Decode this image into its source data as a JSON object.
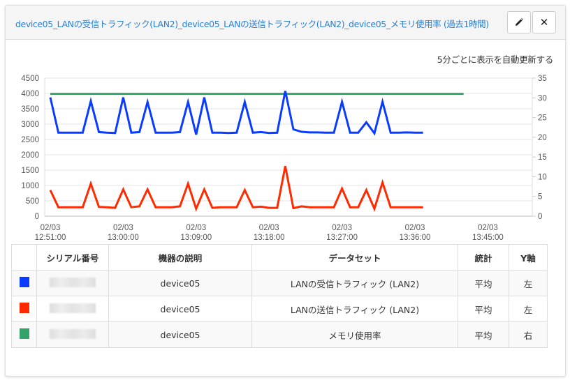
{
  "header": {
    "title": "device05_LANの受信トラフィック(LAN2)_device05_LANの送信トラフィック(LAN2)_device05_メモリ使用率 (過去1時間)",
    "edit_icon": "pencil-icon",
    "close_icon": "close-icon",
    "close_label": "✕"
  },
  "refresh_text": "5分ごとに表示を自動更新する",
  "chart_data": {
    "type": "line",
    "x_start": "02/03 12:51:00",
    "x_interval": "1 minute",
    "x_ticks": [
      [
        "02/03",
        "12:51:00"
      ],
      [
        "02/03",
        "13:00:00"
      ],
      [
        "02/03",
        "13:09:00"
      ],
      [
        "02/03",
        "13:18:00"
      ],
      [
        "02/03",
        "13:27:00"
      ],
      [
        "02/03",
        "13:36:00"
      ],
      [
        "02/03",
        "13:45:00"
      ]
    ],
    "y_left": {
      "ylim": [
        0,
        4500
      ],
      "ticks": [
        0,
        500,
        1000,
        1500,
        2000,
        2500,
        3000,
        3500,
        4000,
        4500
      ]
    },
    "y_right": {
      "ylim": [
        0,
        35
      ],
      "ticks": [
        0,
        5,
        10,
        15,
        20,
        25,
        30,
        35
      ]
    },
    "grid": true,
    "series": [
      {
        "color": "#0a3cff",
        "axis": "left",
        "values": [
          3870,
          2720,
          2720,
          2720,
          2720,
          3750,
          2740,
          2720,
          2710,
          3870,
          2720,
          2740,
          3720,
          2720,
          2720,
          2720,
          2740,
          3720,
          2660,
          3870,
          2720,
          2720,
          2710,
          2720,
          3720,
          2720,
          2740,
          2710,
          2720,
          4080,
          2830,
          2750,
          2730,
          2730,
          2720,
          2720,
          3730,
          2720,
          2720,
          3060,
          2700,
          3730,
          2720,
          2720,
          2730,
          2720,
          2720
        ]
      },
      {
        "color": "#ff2a00",
        "axis": "left",
        "values": [
          850,
          290,
          290,
          290,
          290,
          1060,
          300,
          290,
          270,
          870,
          290,
          320,
          870,
          290,
          290,
          290,
          320,
          1060,
          240,
          870,
          270,
          290,
          290,
          290,
          850,
          290,
          310,
          270,
          270,
          1630,
          260,
          320,
          290,
          290,
          290,
          290,
          900,
          290,
          290,
          850,
          240,
          1100,
          290,
          290,
          290,
          290,
          290
        ]
      },
      {
        "color": "#34a36a",
        "axis": "right",
        "values": [
          31,
          31,
          31,
          31,
          31,
          31,
          31,
          31,
          31,
          31,
          31,
          31,
          31,
          31,
          31,
          31,
          31,
          31,
          31,
          31,
          31,
          31,
          31,
          31,
          31,
          31,
          31,
          31,
          31,
          31,
          31,
          31,
          31,
          31,
          31,
          31,
          31,
          31,
          31,
          31,
          31,
          31,
          31,
          31,
          31,
          31,
          31,
          31,
          31,
          31,
          31,
          31
        ]
      }
    ]
  },
  "table": {
    "headers": [
      "",
      "シリアル番号",
      "機器の説明",
      "データセット",
      "統計",
      "Y軸"
    ],
    "rows": [
      {
        "color": "#0a3cff",
        "device": "device05",
        "dataset": "LANの受信トラフィック (LAN2)",
        "stat": "平均",
        "axis": "左"
      },
      {
        "color": "#ff2a00",
        "device": "device05",
        "dataset": "LANの送信トラフィック (LAN2)",
        "stat": "平均",
        "axis": "左"
      },
      {
        "color": "#34a36a",
        "device": "device05",
        "dataset": "メモリ使用率",
        "stat": "平均",
        "axis": "右"
      }
    ]
  }
}
